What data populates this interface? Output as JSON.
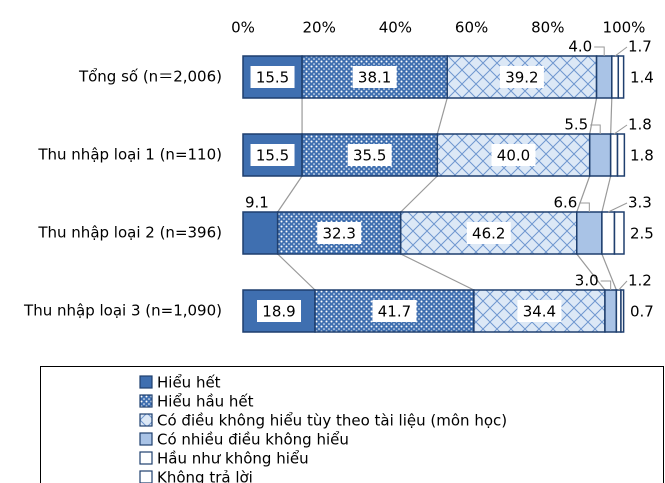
{
  "chart_data": {
    "type": "stacked_barh",
    "categories": [
      "Tổng số (n＝2,006)",
      "Thu nhập loại 1 (n=110)",
      "Thu nhập loại 2 (n=396)",
      "Thu nhập loại 3 (n=1,090)"
    ],
    "xlim": [
      0,
      100
    ],
    "xticks": [
      {
        "value": 0,
        "label": "0%"
      },
      {
        "value": 20,
        "label": "20%"
      },
      {
        "value": 40,
        "label": "40%"
      },
      {
        "value": 60,
        "label": "60%"
      },
      {
        "value": 80,
        "label": "80%"
      },
      {
        "value": 100,
        "label": "100%"
      }
    ],
    "series": [
      {
        "name": "Hiểu hết",
        "color": "#3f6fb0",
        "pattern": "solid",
        "values": [
          15.5,
          15.5,
          9.1,
          18.9
        ],
        "value_labels": [
          "15.5",
          "15.5",
          "9.1",
          "18.9"
        ]
      },
      {
        "name": "Hiểu hầu hết",
        "color": "#3f6fb0",
        "pattern": "dots",
        "values": [
          38.1,
          35.5,
          32.3,
          41.7
        ],
        "value_labels": [
          "38.1",
          "35.5",
          "32.3",
          "41.7"
        ]
      },
      {
        "name": "Có điều không hiểu tùy theo tài liệu (môn học)",
        "color": "#8fb0dc",
        "pattern": "crosshatch",
        "values": [
          39.2,
          40.0,
          46.2,
          34.4
        ],
        "value_labels": [
          "39.2",
          "40.0",
          "46.2",
          "34.4"
        ]
      },
      {
        "name": "Có nhiều điều không hiểu",
        "color": "#a9c3e6",
        "pattern": "solid",
        "values": [
          4.0,
          5.5,
          6.6,
          3.0
        ],
        "value_labels": [
          "4.0",
          "5.5",
          "6.6",
          "3.0"
        ]
      },
      {
        "name": "Hầu như không hiểu",
        "color": "#ffffff",
        "pattern": "solid",
        "values": [
          1.7,
          1.8,
          3.3,
          1.2
        ],
        "value_labels": [
          "1.7",
          "1.8",
          "3.3",
          "1.2"
        ]
      },
      {
        "name": "Không trả lời",
        "color": "#ffffff",
        "pattern": "solid",
        "values": [
          1.4,
          1.8,
          2.5,
          0.7
        ],
        "value_labels": [
          "1.4",
          "1.8",
          "2.5",
          "0.7"
        ]
      }
    ]
  }
}
